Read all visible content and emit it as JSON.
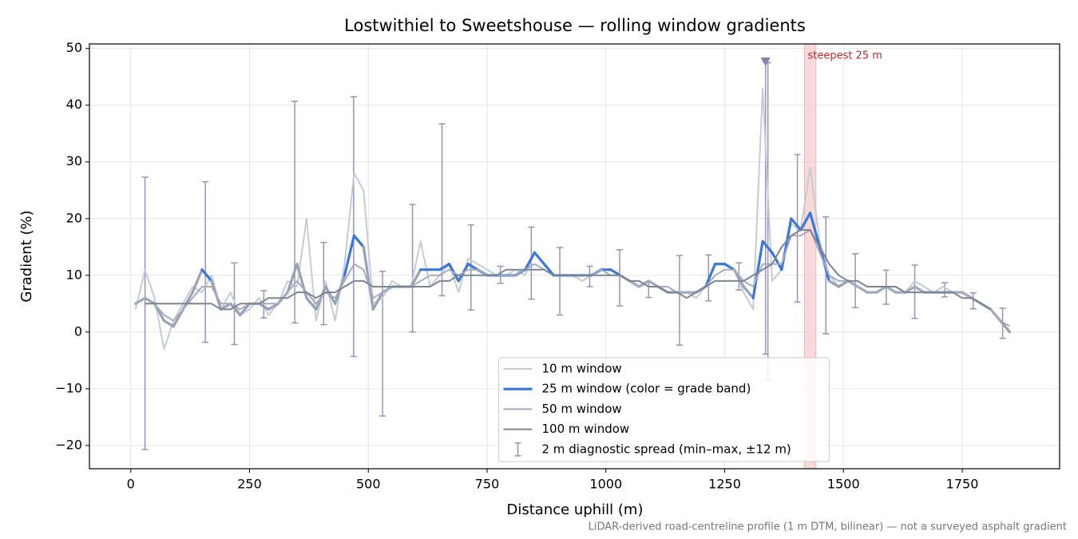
{
  "chart_data": {
    "type": "line",
    "title": "Lostwithiel to Sweetshouse — rolling window gradients",
    "xlabel": "Distance uphill (m)",
    "ylabel": "Gradient (%)",
    "footnote": "LiDAR-derived road-centreline profile (1 m DTM, bilinear) — not a surveyed asphalt gradient",
    "xlim": [
      -87,
      1955
    ],
    "ylim": [
      -24.1,
      50.8
    ],
    "xticks": [
      0,
      250,
      500,
      750,
      1000,
      1250,
      1500,
      1750
    ],
    "yticks": [
      {
        "value": -20,
        "label": "−20"
      },
      {
        "value": -10,
        "label": "−10"
      },
      0,
      10,
      20,
      30,
      40,
      50
    ],
    "grid": true,
    "legend": "lower center",
    "x": [
      10,
      30,
      50,
      70,
      90,
      110,
      130,
      150,
      170,
      190,
      210,
      230,
      250,
      270,
      290,
      310,
      330,
      350,
      370,
      390,
      410,
      430,
      450,
      470,
      490,
      510,
      530,
      550,
      570,
      590,
      610,
      630,
      650,
      670,
      690,
      710,
      730,
      750,
      770,
      790,
      810,
      830,
      850,
      870,
      890,
      910,
      930,
      950,
      970,
      990,
      1010,
      1030,
      1050,
      1070,
      1090,
      1110,
      1130,
      1150,
      1170,
      1190,
      1210,
      1230,
      1250,
      1270,
      1290,
      1310,
      1330,
      1350,
      1370,
      1390,
      1410,
      1430,
      1450,
      1470,
      1490,
      1510,
      1530,
      1550,
      1570,
      1590,
      1610,
      1630,
      1650,
      1670,
      1690,
      1710,
      1730,
      1750,
      1770,
      1790,
      1810,
      1830,
      1850
    ],
    "series": [
      {
        "name": "10 m window",
        "color": "#c4ccd6",
        "width": 2,
        "values": [
          4,
          11,
          6,
          -3,
          2,
          5,
          8,
          7,
          10,
          4,
          7,
          3,
          4,
          6,
          3,
          5,
          9,
          8,
          20,
          2,
          9,
          2,
          12,
          28,
          25,
          5,
          6,
          9,
          8,
          8,
          16,
          8,
          10,
          12,
          7,
          13,
          12,
          11,
          10,
          10,
          11,
          10,
          14,
          12,
          10,
          10,
          10,
          9,
          10,
          11,
          11,
          10,
          9,
          8,
          9,
          8,
          7,
          7,
          7,
          6,
          8,
          12,
          12,
          11,
          7,
          4,
          43,
          9,
          11,
          19,
          18,
          29,
          16,
          10,
          8,
          9,
          8,
          7,
          7,
          8,
          8,
          7,
          9,
          8,
          7,
          8,
          7,
          7,
          6,
          5,
          4,
          2,
          0
        ]
      },
      {
        "name": "25 m window (color = grade band)",
        "color": "#97a3b5",
        "legend_color": "#3a78d8",
        "width": 3.2,
        "grade_bands": [
          {
            "from": 10,
            "color": "#3a78d8"
          },
          {
            "from": 20,
            "color": "#e08a00"
          }
        ],
        "values": [
          5,
          6,
          5,
          2,
          1,
          4,
          7,
          11,
          9,
          4,
          5,
          3,
          5,
          5,
          4,
          5,
          7,
          12,
          6,
          4,
          8,
          5,
          10,
          17,
          15,
          4,
          7,
          8,
          8,
          8,
          11,
          11,
          11,
          12,
          9,
          12,
          11,
          10,
          10,
          10,
          10,
          11,
          14,
          12,
          10,
          10,
          10,
          10,
          10,
          11,
          11,
          10,
          9,
          8,
          9,
          8,
          7,
          7,
          7,
          7,
          8,
          12,
          12,
          11,
          8,
          6,
          16,
          14,
          11,
          20,
          18,
          21,
          15,
          9,
          8,
          9,
          8,
          7,
          7,
          8,
          7,
          7,
          8,
          7,
          7,
          7,
          7,
          7,
          6,
          5,
          4,
          2,
          0
        ]
      },
      {
        "name": "50 m window",
        "color": "#a6abc2",
        "width": 2,
        "values": [
          5,
          6,
          5,
          3,
          2,
          4,
          6,
          8,
          8,
          5,
          5,
          4,
          5,
          5,
          5,
          5,
          7,
          9,
          7,
          5,
          7,
          6,
          9,
          12,
          11,
          6,
          7,
          8,
          8,
          8,
          9,
          10,
          10,
          11,
          10,
          11,
          11,
          10,
          10,
          10,
          10,
          11,
          12,
          11,
          10,
          10,
          10,
          10,
          10,
          11,
          10,
          10,
          9,
          8,
          9,
          8,
          8,
          7,
          7,
          7,
          8,
          10,
          11,
          11,
          9,
          8,
          12,
          12,
          12,
          17,
          17,
          18,
          14,
          10,
          9,
          9,
          8,
          7,
          7,
          8,
          7,
          7,
          8,
          7,
          7,
          7,
          7,
          7,
          6,
          5,
          4,
          2,
          1
        ]
      },
      {
        "name": "100 m window",
        "color": "#7c8594",
        "width": 2,
        "values": [
          null,
          5,
          5,
          5,
          5,
          5,
          5,
          5,
          5,
          4,
          4,
          5,
          5,
          5,
          6,
          6,
          6,
          7,
          7,
          6,
          7,
          7,
          8,
          9,
          9,
          8,
          8,
          8,
          8,
          8,
          8,
          8,
          9,
          9,
          10,
          10,
          10,
          10,
          10,
          11,
          11,
          11,
          11,
          11,
          10,
          10,
          10,
          10,
          10,
          10,
          10,
          10,
          9,
          9,
          8,
          8,
          7,
          7,
          6,
          7,
          8,
          9,
          9,
          9,
          9,
          10,
          11,
          12,
          15,
          17,
          18,
          18,
          15,
          12,
          10,
          9,
          9,
          8,
          8,
          8,
          8,
          7,
          7,
          7,
          7,
          7,
          7,
          6,
          6,
          5,
          4,
          null,
          null
        ]
      }
    ],
    "errorbars": {
      "name": "2 m diagnostic spread (min–max, ±12 m)",
      "color": "#9a92bd",
      "x": [
        30,
        157,
        218,
        280,
        345,
        406,
        469,
        530,
        593,
        655,
        716,
        778,
        843,
        903,
        966,
        1029,
        1090,
        1155,
        1216,
        1280,
        1336,
        1341,
        1403,
        1463,
        1525,
        1590,
        1650,
        1713,
        1773,
        1835
      ],
      "min": [
        -20.7,
        -1.8,
        -2.2,
        2.5,
        1.6,
        1.3,
        -4.3,
        -14.8,
        0,
        6.4,
        3.9,
        8.6,
        5.8,
        3,
        8,
        4.6,
        6.1,
        -2.3,
        5.5,
        7.4,
        -3.9,
        -8.4,
        5.3,
        -0.3,
        4.3,
        4.9,
        2.4,
        6.2,
        4.1,
        -1.1
      ],
      "max": [
        27.3,
        26.5,
        12.2,
        7.3,
        40.7,
        15.8,
        41.5,
        10.7,
        22.5,
        36.7,
        18.9,
        11.6,
        18.5,
        14.9,
        11.6,
        14.5,
        8.9,
        13.5,
        13.6,
        12.2,
        47.7,
        47.5,
        31.3,
        20.3,
        13.8,
        10.9,
        11.8,
        8.7,
        6.9,
        4.2
      ]
    },
    "marker": {
      "x": 1336,
      "y": 47.7,
      "color": "#8a7fa8"
    },
    "highlight": {
      "xlim": [
        1418,
        1442
      ],
      "label": "steepest 25 m",
      "color": "#f6cccc",
      "text_color": "#c0282d"
    }
  }
}
